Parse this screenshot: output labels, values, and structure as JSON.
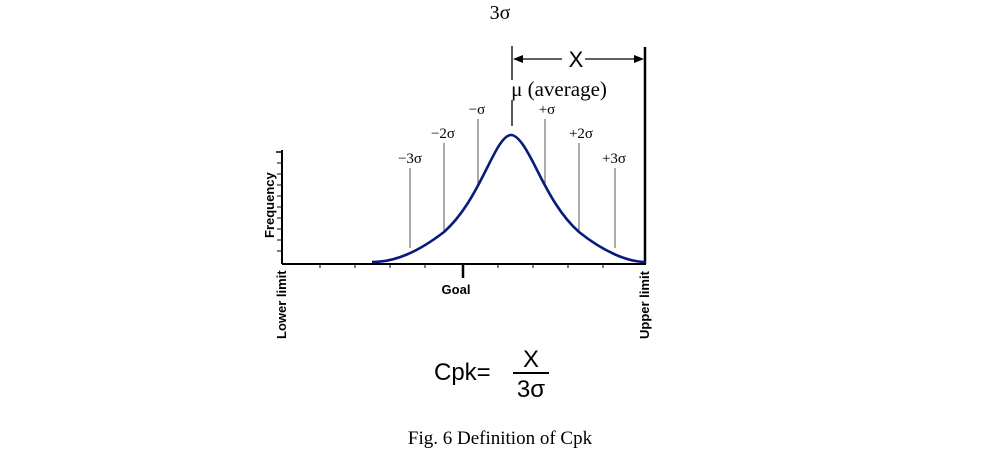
{
  "header_label": "3σ",
  "arrow_label": "X",
  "mean_label": "μ (average)",
  "sigma_labels": [
    "−3σ",
    "−2σ",
    "−σ",
    "+σ",
    "+2σ",
    "+3σ"
  ],
  "y_axis_label": "Frequency",
  "goal_label": "Goal",
  "lower_limit_label": "Lower limit",
  "upper_limit_label": "Upper limit",
  "formula": {
    "lhs": "Cpk=",
    "numerator": "X",
    "denominator": "3σ"
  },
  "caption": "Fig. 6 Definition of Cpk",
  "colors": {
    "curve": "#0a1a7a",
    "lines": "#000000",
    "guides": "#555555"
  }
}
